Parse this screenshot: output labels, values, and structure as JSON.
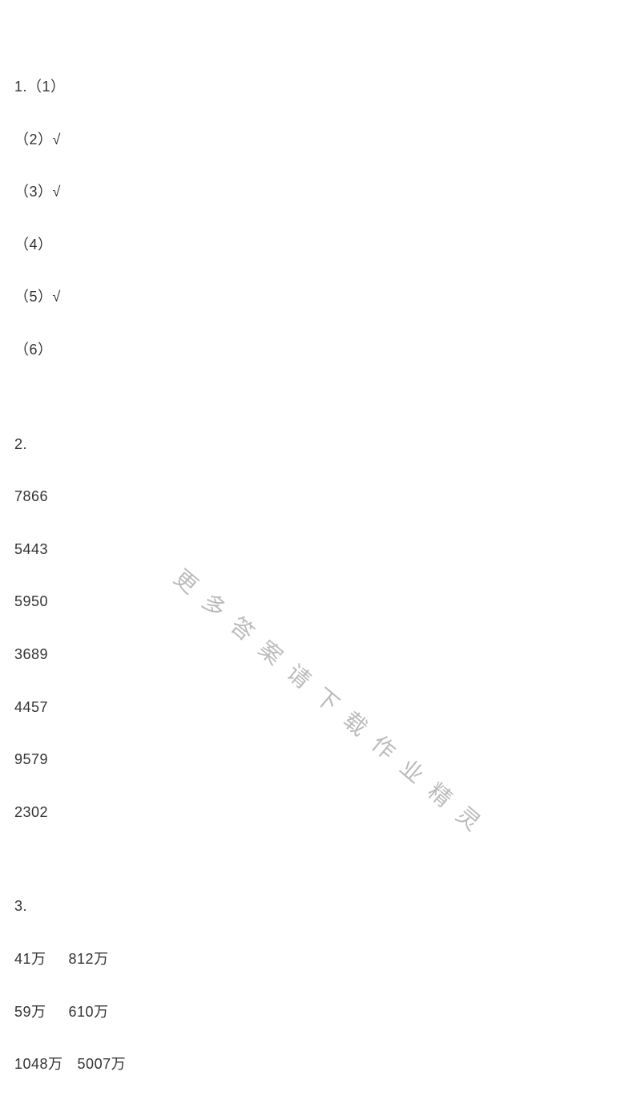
{
  "section1": {
    "heading": "1.（1）",
    "items": [
      "（2）√",
      "（3）√",
      "（4）",
      "（5）√",
      "（6）"
    ]
  },
  "section2": {
    "heading": "2.",
    "values": [
      "7866",
      "5443",
      "5950",
      "3689",
      "4457",
      "9579",
      "2302"
    ]
  },
  "section3": {
    "heading": "3.",
    "rows": [
      {
        "left": "41万",
        "right": "812万",
        "gapClass": "gap-small"
      },
      {
        "left": "59万",
        "right": "610万",
        "gapClass": "gap-small"
      },
      {
        "left": "1048万",
        "right": "5007万",
        "gapClass": "gap-medium"
      }
    ]
  },
  "watermark": {
    "text": "更多答案请下载作业精灵",
    "color": "#b0b0b0",
    "fontsize": 28,
    "rotation_deg": 40
  },
  "colors": {
    "text": "#333333",
    "background": "#ffffff"
  },
  "typography": {
    "body_fontsize": 18,
    "line_height": 1.2,
    "block_margin_bottom": 44,
    "section_gap": 96
  }
}
